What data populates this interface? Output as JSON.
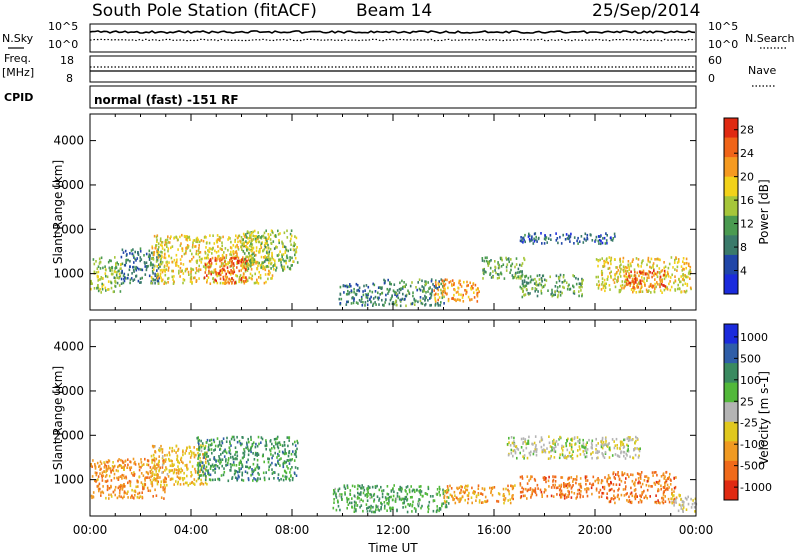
{
  "header": {
    "station": "South Pole Station (fitACF)",
    "beam": "Beam 14",
    "date": "25/Sep/2014",
    "cpid_value": "normal (fast) -151 RF"
  },
  "side_labels": {
    "nsky": "N.Sky",
    "freq_line1": "Freq.",
    "freq_line2": "[MHz]",
    "cpid": "CPID",
    "nsearch": "N.Search",
    "nave": "Nave"
  },
  "top_axes": {
    "noise_left_ticks": [
      "10^5",
      "10^0"
    ],
    "noise_right_ticks": [
      "10^5",
      "10^0"
    ],
    "freq_left_ticks": [
      "18",
      "8"
    ],
    "nave_right_ticks": [
      "60",
      "0"
    ]
  },
  "colors": {
    "power_scale": [
      "#1b2bdc",
      "#2046a8",
      "#3a7a6a",
      "#4a9a50",
      "#a6c63a",
      "#f2d21a",
      "#f59a20",
      "#f06418",
      "#e02a12"
    ],
    "velocity_scale": [
      "#1b2bdc",
      "#2f5ea8",
      "#3a8a60",
      "#52b83a",
      "#b4b4b4",
      "#e0c81e",
      "#f09a22",
      "#f06a1a",
      "#e02a12"
    ]
  },
  "chart_data": [
    {
      "type": "heatmap",
      "name": "power-panel",
      "ylabel": "Slant Range [km]",
      "xlabel": "",
      "x_ticks": [
        "00:00",
        "04:00",
        "08:00",
        "12:00",
        "16:00",
        "20:00",
        "00:00"
      ],
      "y_ticks": [
        1000,
        2000,
        3000,
        4000
      ],
      "xlim": [
        0,
        24
      ],
      "ylim": [
        180,
        4600
      ],
      "colorbar": {
        "label": "Power [dB]",
        "ticks": [
          "4",
          "8",
          "12",
          "16",
          "20",
          "24",
          "28"
        ],
        "range": [
          0,
          30
        ]
      },
      "echo_regions": [
        {
          "t": [
            0.0,
            1.2
          ],
          "r": [
            600,
            1400
          ],
          "v": 14
        },
        {
          "t": [
            1.2,
            2.8
          ],
          "r": [
            800,
            1600
          ],
          "v": 8
        },
        {
          "t": [
            2.4,
            7.2
          ],
          "r": [
            800,
            1900
          ],
          "v": 18
        },
        {
          "t": [
            4.5,
            6.2
          ],
          "r": [
            800,
            1400
          ],
          "v": 26
        },
        {
          "t": [
            6.0,
            8.2
          ],
          "r": [
            1100,
            2000
          ],
          "v": 14
        },
        {
          "t": [
            9.8,
            11.5
          ],
          "r": [
            300,
            800
          ],
          "v": 8
        },
        {
          "t": [
            11.5,
            14.0
          ],
          "r": [
            300,
            900
          ],
          "v": 10
        },
        {
          "t": [
            13.6,
            15.4
          ],
          "r": [
            400,
            900
          ],
          "v": 22
        },
        {
          "t": [
            15.5,
            17.2
          ],
          "r": [
            900,
            1400
          ],
          "v": 12
        },
        {
          "t": [
            17.0,
            20.8
          ],
          "r": [
            1700,
            1950
          ],
          "v": 6
        },
        {
          "t": [
            17.0,
            19.5
          ],
          "r": [
            500,
            1000
          ],
          "v": 12
        },
        {
          "t": [
            20.0,
            23.8
          ],
          "r": [
            600,
            1400
          ],
          "v": 18
        },
        {
          "t": [
            21.2,
            22.8
          ],
          "r": [
            700,
            1100
          ],
          "v": 26
        }
      ]
    },
    {
      "type": "heatmap",
      "name": "velocity-panel",
      "ylabel": "Slant Range [km]",
      "xlabel": "Time UT",
      "x_ticks": [
        "00:00",
        "04:00",
        "08:00",
        "12:00",
        "16:00",
        "20:00",
        "00:00"
      ],
      "y_ticks": [
        1000,
        2000,
        3000,
        4000
      ],
      "xlim": [
        0,
        24
      ],
      "ylim": [
        180,
        4600
      ],
      "colorbar": {
        "label": "Velocity [m s-1]",
        "ticks": [
          "1000",
          "500",
          "100",
          "25",
          "-25",
          "-100",
          "-500",
          "-1000"
        ],
        "range": [
          -1000,
          1000
        ]
      },
      "echo_regions": [
        {
          "t": [
            0.0,
            3.0
          ],
          "r": [
            600,
            1500
          ],
          "v": -500
        },
        {
          "t": [
            2.4,
            4.6
          ],
          "r": [
            900,
            1800
          ],
          "v": -300
        },
        {
          "t": [
            4.2,
            8.2
          ],
          "r": [
            1000,
            2000
          ],
          "v": 400
        },
        {
          "t": [
            9.6,
            14.2
          ],
          "r": [
            300,
            900
          ],
          "v": 300
        },
        {
          "t": [
            14.0,
            16.8
          ],
          "r": [
            500,
            900
          ],
          "v": -450
        },
        {
          "t": [
            16.5,
            21.8
          ],
          "r": [
            1500,
            2000
          ],
          "v": 0
        },
        {
          "t": [
            17.0,
            20.5
          ],
          "r": [
            600,
            1100
          ],
          "v": -600
        },
        {
          "t": [
            20.5,
            23.2
          ],
          "r": [
            500,
            1200
          ],
          "v": -600
        },
        {
          "t": [
            23.0,
            24.0
          ],
          "r": [
            300,
            700
          ],
          "v": -100
        }
      ]
    }
  ]
}
